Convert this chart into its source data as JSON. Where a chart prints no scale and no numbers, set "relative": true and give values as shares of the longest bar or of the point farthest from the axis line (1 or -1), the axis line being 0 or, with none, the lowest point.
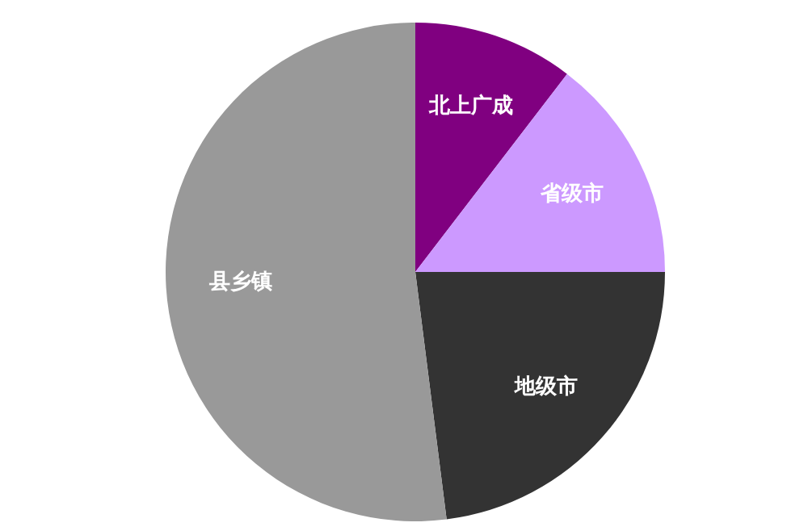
{
  "chart_data": {
    "type": "pie",
    "relative": true,
    "categories": [
      "北上广成",
      "省级市",
      "地级市",
      "县乡镇"
    ],
    "values": [
      10.4,
      14.6,
      23.0,
      52.0
    ],
    "colors": [
      "#800080",
      "#cc99ff",
      "#333333",
      "#999999"
    ],
    "legend": false
  }
}
